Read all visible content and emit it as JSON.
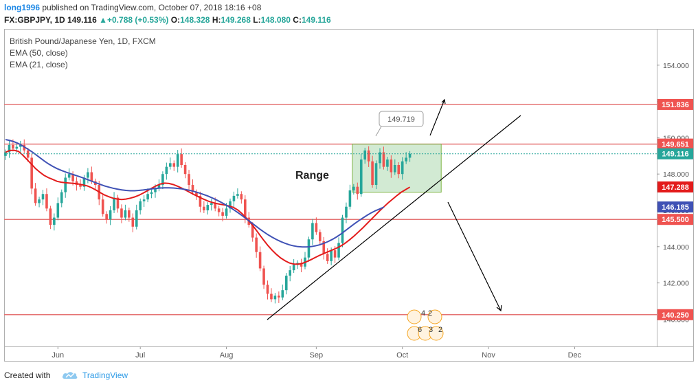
{
  "header": {
    "user": "long1996",
    "published_text": "published on TradingView.com, October 07, 2018 18:16 +08",
    "symbol": "FX:GBPJPY, 1D",
    "last": "149.116",
    "change": "+0.788 (+0.53%)",
    "open_label": "O:",
    "open": "148.328",
    "high_label": "H:",
    "high": "149.268",
    "low_label": "L:",
    "low": "148.080",
    "close_label": "C:",
    "close": "149.116"
  },
  "legend": {
    "title": "British Pound/Japanese Yen, 1D, FXCM",
    "ema50": "EMA (50, close)",
    "ema21": "EMA (21, close)"
  },
  "annotations": {
    "range_label": "Range",
    "callout": "149.719",
    "event_badges": [
      "4",
      "2",
      "6",
      "3",
      "2"
    ]
  },
  "footer": {
    "created_with": "Created with",
    "brand": "TradingView"
  },
  "colors": {
    "up": "#26a69a",
    "down": "#ef5350",
    "ema21": "#e31b1b",
    "ema50": "#3f51b5",
    "hline": "#e57373",
    "range_box": "#a5d6a7"
  },
  "chart_data": {
    "type": "candlestick",
    "ylim": [
      138.5,
      156.0
    ],
    "x_ticks": [
      "Jun",
      "Jul",
      "Aug",
      "Sep",
      "Oct",
      "Nov",
      "Dec"
    ],
    "y_ticks": [
      "140.000",
      "142.000",
      "144.000",
      "146.000",
      "148.000",
      "150.000",
      "152.000",
      "154.000"
    ],
    "price_labels": [
      {
        "text": "151.836",
        "value": 151.836,
        "color": "#ef5350"
      },
      {
        "text": "149.651",
        "value": 149.651,
        "color": "#ef5350"
      },
      {
        "text": "149.116",
        "value": 149.116,
        "color": "#26a69a"
      },
      {
        "text": "147.288",
        "value": 147.288,
        "color": "#e31b1b"
      },
      {
        "text": "146.185",
        "value": 146.185,
        "color": "#3f51b5"
      },
      {
        "text": "145.500",
        "value": 145.5,
        "color": "#ef5350"
      },
      {
        "text": "140.250",
        "value": 140.25,
        "color": "#ef5350"
      }
    ],
    "horizontal_levels": [
      151.836,
      149.651,
      145.5,
      140.25
    ],
    "last_price": 149.116,
    "range_box": {
      "low": 147.0,
      "high": 149.65
    },
    "close": [
      149.2,
      149.6,
      149.4,
      149.5,
      149.6,
      149.3,
      148.9,
      147.2,
      146.4,
      146.6,
      146.9,
      146.1,
      145.2,
      145.6,
      146.4,
      147.0,
      147.8,
      148.0,
      147.6,
      147.4,
      147.3,
      147.8,
      148.1,
      147.6,
      147.4,
      146.6,
      145.8,
      145.5,
      146.0,
      146.7,
      146.1,
      145.6,
      146.0,
      145.6,
      145.1,
      146.0,
      146.5,
      146.6,
      146.9,
      147.0,
      147.2,
      147.4,
      148.0,
      148.4,
      148.6,
      148.4,
      149.1,
      148.5,
      148.0,
      147.4,
      147.0,
      146.8,
      146.2,
      146.0,
      146.3,
      146.4,
      146.1,
      145.9,
      145.7,
      146.1,
      146.5,
      146.8,
      146.9,
      146.6,
      145.6,
      145.2,
      144.5,
      143.7,
      142.8,
      141.9,
      141.4,
      141.1,
      141.3,
      141.2,
      141.6,
      142.4,
      142.7,
      143.0,
      143.1,
      142.9,
      143.4,
      144.4,
      145.3,
      144.8,
      144.3,
      143.6,
      143.2,
      143.8,
      143.4,
      144.2,
      145.6,
      146.2,
      147.1,
      147.3,
      146.9,
      148.8,
      149.3,
      148.7,
      147.4,
      148.6,
      149.2,
      148.4,
      148.8,
      148.1,
      148.5,
      148.0,
      148.7,
      148.9,
      149.116
    ],
    "ema21": [
      149.2,
      149.3,
      149.31,
      149.25,
      149.05,
      148.8,
      148.55,
      148.3,
      148.1,
      147.92,
      147.8,
      147.7,
      147.6,
      147.55,
      147.52,
      147.5,
      147.48,
      147.45,
      147.4,
      147.35,
      147.25,
      147.12,
      146.98,
      146.85,
      146.75,
      146.67,
      146.62,
      146.6,
      146.62,
      146.67,
      146.74,
      146.83,
      146.95,
      147.08,
      147.22,
      147.35,
      147.45,
      147.5,
      147.48,
      147.42,
      147.33,
      147.22,
      147.1,
      146.97,
      146.85,
      146.73,
      146.62,
      146.52,
      146.44,
      146.38,
      146.33,
      146.29,
      146.24,
      146.16,
      146.02,
      145.82,
      145.57,
      145.3,
      145.0,
      144.68,
      144.36,
      144.06,
      143.8,
      143.57,
      143.37,
      143.22,
      143.1,
      143.04,
      143.03,
      143.08,
      143.17,
      143.28,
      143.4,
      143.52,
      143.62,
      143.72,
      143.82,
      143.92,
      144.04,
      144.2,
      144.38,
      144.58,
      144.8,
      145.02,
      145.26,
      145.5,
      145.74,
      145.98,
      146.2,
      146.42,
      146.62,
      146.82,
      147.0,
      147.14,
      147.28
    ],
    "ema50": [
      149.9,
      149.85,
      149.78,
      149.68,
      149.55,
      149.4,
      149.25,
      149.08,
      148.9,
      148.72,
      148.56,
      148.42,
      148.3,
      148.2,
      148.11,
      148.03,
      147.95,
      147.87,
      147.79,
      147.7,
      147.61,
      147.52,
      147.43,
      147.35,
      147.28,
      147.22,
      147.17,
      147.13,
      147.1,
      147.08,
      147.08,
      147.1,
      147.12,
      147.15,
      147.18,
      147.21,
      147.23,
      147.24,
      147.24,
      147.23,
      147.21,
      147.18,
      147.14,
      147.09,
      147.03,
      146.96,
      146.88,
      146.79,
      146.69,
      146.58,
      146.46,
      146.33,
      146.19,
      146.04,
      145.88,
      145.71,
      145.53,
      145.35,
      145.17,
      144.99,
      144.82,
      144.66,
      144.52,
      144.39,
      144.28,
      144.18,
      144.1,
      144.04,
      144.0,
      143.98,
      143.98,
      144.0,
      144.04,
      144.1,
      144.18,
      144.28,
      144.4,
      144.54,
      144.7,
      144.88,
      145.06,
      145.24,
      145.41,
      145.57,
      145.72,
      145.86,
      145.98,
      146.08,
      146.185
    ]
  }
}
